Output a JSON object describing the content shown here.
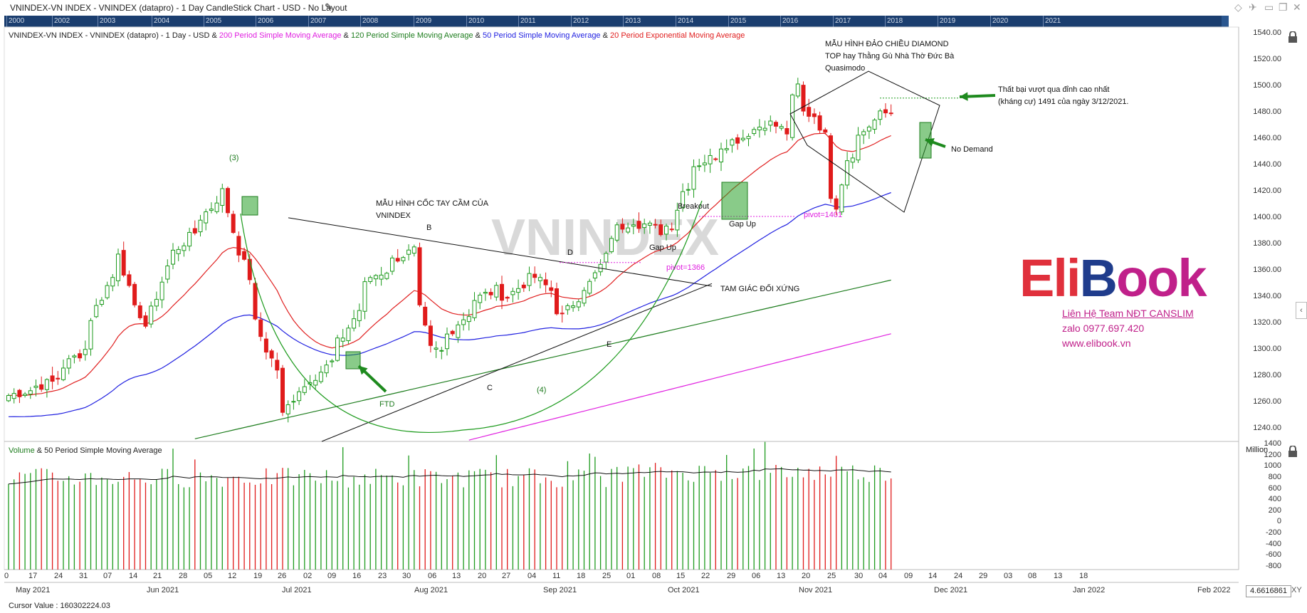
{
  "window": {
    "title": "VNINDEX-VN INDEX - VNINDEX (datapro) - 1 Day CandleStick Chart - USD - No Layout"
  },
  "overview_years": [
    "2000",
    "2002",
    "2003",
    "2004",
    "2005",
    "2006",
    "2007",
    "2008",
    "2009",
    "2010",
    "2011",
    "2012",
    "2013",
    "2014",
    "2015",
    "2016",
    "2017",
    "2018",
    "2019",
    "2020",
    "2021"
  ],
  "legend": {
    "base": "VNINDEX-VN INDEX - VNINDEX (datapro) - 1 Day - USD &",
    "ma200": "200 Period Simple Moving Average",
    "and1": "&",
    "ma120": "120 Period Simple Moving Average",
    "and2": "&",
    "ma50": "50 Period Simple Moving Average",
    "and3": "&",
    "ema20": "20 Period Exponential Moving Average"
  },
  "volume_legend": {
    "vol": "Volume",
    "rest": "& 50 Period Simple Moving Average",
    "unit": "Million"
  },
  "annotations": {
    "cup_title1": "MẪU HÌNH CỐC TAY CẦM CỦA",
    "cup_title2": "VNINDEX",
    "B": "B",
    "C": "C",
    "D": "D",
    "E": "E",
    "w3": "(3)",
    "w4": "(4)",
    "ftd": "FTD",
    "gap_up1": "Gap Up",
    "gap_up2": "Gap Up",
    "breakout": "Breakout",
    "pivot1366": "pivot=1366",
    "pivot1401": "pivot=1401",
    "triangle": "TAM GIÁC ĐỐI XỨNG",
    "diamond1": "MẪU HÌNH ĐẢO CHIỀU DIAMOND",
    "diamond2": "TOP hay Thằng Gù Nhà Thờ Đức Bà",
    "diamond3": "Quasimodo",
    "fail1": "Thất bại vượt qua đỉnh cao nhất",
    "fail2": "(kháng cự) 1491 của ngày 3/12/2021.",
    "no_demand": "No Demand",
    "watermark": "VNINDEX"
  },
  "logo": {
    "eli": "Eli",
    "b": "B",
    "ook": "ook",
    "line1": "Liên Hệ Team NĐT CANSLIM",
    "line2": "zalo 0977.697.420",
    "line3": "www.elibook.vn"
  },
  "cursor": "Cursor Value : 160302224.03",
  "x_value": "4.6616861",
  "price_ticks": [
    "1540.00",
    "1520.00",
    "1500.00",
    "1480.00",
    "1460.00",
    "1440.00",
    "1420.00",
    "1400.00",
    "1380.00",
    "1360.00",
    "1340.00",
    "1320.00",
    "1300.00",
    "1280.00",
    "1260.00",
    "1240.00"
  ],
  "volume_ticks": [
    "1400",
    "1200",
    "1000",
    "800",
    "600",
    "400",
    "200",
    "0",
    "-200",
    "-400",
    "-600",
    "-800"
  ],
  "date_labels": [
    "0",
    "17",
    "24",
    "31",
    "07",
    "14",
    "21",
    "28",
    "05",
    "12",
    "19",
    "26",
    "02",
    "09",
    "16",
    "23",
    "30",
    "06",
    "13",
    "20",
    "27",
    "04",
    "11",
    "18",
    "25",
    "01",
    "08",
    "15",
    "22",
    "29",
    "06",
    "13",
    "20",
    "25",
    "30",
    "04",
    "09",
    "14",
    "24",
    "29",
    "03",
    "08",
    "13",
    "18"
  ],
  "month_labels": [
    "May 2021",
    "Jun 2021",
    "Jul 2021",
    "Aug 2021",
    "Sep 2021",
    "Oct 2021",
    "Nov 2021",
    "Dec 2021",
    "Jan 2022",
    "Feb 2022"
  ],
  "colors": {
    "up": "#1e9b1e",
    "down": "#e01b1b",
    "ema20": "#e02020",
    "sma50": "#1f1fe0",
    "sma120": "#1e7d1e",
    "sma200": "#e020e0"
  },
  "chart_data": {
    "type": "candlestick",
    "interval": "1 Day",
    "ylim": [
      1230,
      1545
    ],
    "start_date": "2021-05-10",
    "end_date": "2021-12-21",
    "anchors": [
      [
        "2021-05-10",
        1265
      ],
      [
        "2021-05-20",
        1275
      ],
      [
        "2021-05-28",
        1300
      ],
      [
        "2021-06-03",
        1348
      ],
      [
        "2021-06-07",
        1375
      ],
      [
        "2021-06-10",
        1330
      ],
      [
        "2021-06-14",
        1318
      ],
      [
        "2021-06-18",
        1363
      ],
      [
        "2021-06-24",
        1385
      ],
      [
        "2021-06-30",
        1408
      ],
      [
        "2021-07-02",
        1420
      ],
      [
        "2021-07-05",
        1405
      ],
      [
        "2021-07-07",
        1375
      ],
      [
        "2021-07-09",
        1355
      ],
      [
        "2021-07-12",
        1320
      ],
      [
        "2021-07-14",
        1300
      ],
      [
        "2021-07-16",
        1285
      ],
      [
        "2021-07-19",
        1250
      ],
      [
        "2021-07-22",
        1270
      ],
      [
        "2021-07-27",
        1280
      ],
      [
        "2021-07-30",
        1290
      ],
      [
        "2021-08-03",
        1310
      ],
      [
        "2021-08-06",
        1330
      ],
      [
        "2021-08-10",
        1355
      ],
      [
        "2021-08-13",
        1360
      ],
      [
        "2021-08-17",
        1370
      ],
      [
        "2021-08-20",
        1375
      ],
      [
        "2021-08-23",
        1330
      ],
      [
        "2021-08-25",
        1300
      ],
      [
        "2021-08-27",
        1298
      ],
      [
        "2021-09-01",
        1320
      ],
      [
        "2021-09-06",
        1338
      ],
      [
        "2021-09-10",
        1345
      ],
      [
        "2021-09-14",
        1340
      ],
      [
        "2021-09-17",
        1350
      ],
      [
        "2021-09-21",
        1355
      ],
      [
        "2021-09-24",
        1345
      ],
      [
        "2021-09-28",
        1325
      ],
      [
        "2021-10-01",
        1340
      ],
      [
        "2021-10-05",
        1350
      ],
      [
        "2021-10-08",
        1370
      ],
      [
        "2021-10-12",
        1392
      ],
      [
        "2021-10-15",
        1398
      ],
      [
        "2021-10-19",
        1395
      ],
      [
        "2021-10-22",
        1390
      ],
      [
        "2021-10-26",
        1395
      ],
      [
        "2021-10-28",
        1420
      ],
      [
        "2021-11-01",
        1440
      ],
      [
        "2021-11-04",
        1445
      ],
      [
        "2021-11-08",
        1455
      ],
      [
        "2021-11-11",
        1460
      ],
      [
        "2021-11-15",
        1465
      ],
      [
        "2021-11-18",
        1472
      ],
      [
        "2021-11-22",
        1470
      ],
      [
        "2021-11-24",
        1465
      ],
      [
        "2021-11-25",
        1490
      ],
      [
        "2021-11-26",
        1500
      ],
      [
        "2021-11-29",
        1480
      ],
      [
        "2021-12-01",
        1478
      ],
      [
        "2021-12-03",
        1462
      ],
      [
        "2021-12-06",
        1418
      ],
      [
        "2021-12-07",
        1410
      ],
      [
        "2021-12-09",
        1445
      ],
      [
        "2021-12-13",
        1462
      ],
      [
        "2021-12-15",
        1470
      ],
      [
        "2021-12-17",
        1478
      ],
      [
        "2021-12-21",
        1480
      ]
    ],
    "volume_ylim": [
      -850,
      1450
    ],
    "volume_unit": "Million",
    "overlays": [
      {
        "name": "20 Period Exponential Moving Average",
        "type": "EMA",
        "period": 20
      },
      {
        "name": "50 Period Simple Moving Average",
        "type": "SMA",
        "period": 50
      },
      {
        "name": "120 Period Simple Moving Average",
        "type": "SMA",
        "period": 120
      },
      {
        "name": "200 Period Simple Moving Average",
        "type": "SMA",
        "period": 200
      }
    ],
    "pivots": [
      1366,
      1401
    ],
    "resistance": 1491
  }
}
